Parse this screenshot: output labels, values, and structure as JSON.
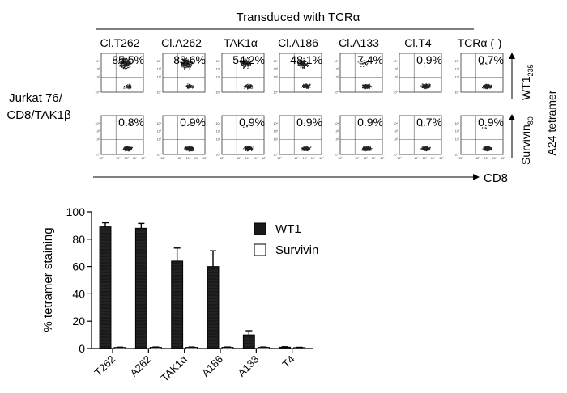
{
  "figure": {
    "top_header": "Transduced with TCRα",
    "clones": [
      "Cl.T262",
      "Cl.A262",
      "TAK1α",
      "Cl.A186",
      "Cl.A133",
      "Cl.T4",
      "TCRα (-)"
    ],
    "row_label_line1": "Jurkat 76/",
    "row_label_line2": "CD8/TAK1β",
    "x_axis_label": "CD8",
    "y_axis_group_label": "A24 tetramer",
    "row_labels": [
      {
        "base": "WT1",
        "sub": "235"
      },
      {
        "base": "Survivin",
        "sub": "80"
      }
    ],
    "facs_tick_labels": [
      "10⁰",
      "10¹",
      "10²",
      "10³",
      "10⁴",
      "10⁵"
    ],
    "percent_row1": [
      "85.5%",
      "83.6%",
      "54.2%",
      "48.1%",
      "7.4%",
      "0.9%",
      "0.7%"
    ],
    "percent_row2": [
      "0.8%",
      "0.9%",
      "0.9%",
      "0.9%",
      "0.9%",
      "0.7%",
      "0.9%"
    ]
  },
  "chart_data": {
    "type": "bar",
    "categories": [
      "T262",
      "A262",
      "TAK1α",
      "A186",
      "A133",
      "T4"
    ],
    "series": [
      {
        "name": "WT1",
        "values": [
          89,
          88,
          64,
          60,
          10,
          1
        ],
        "errors": [
          3,
          3.5,
          9.5,
          11.5,
          3,
          0.3
        ],
        "color": "#1a1a1a"
      },
      {
        "name": "Survivin",
        "values": [
          0.8,
          0.9,
          0.9,
          0.9,
          0.9,
          0.7
        ],
        "errors": [
          0.2,
          0.2,
          0.2,
          0.2,
          0.2,
          0.2
        ],
        "color": "#ffffff"
      }
    ],
    "ylabel": "% tetramer staining",
    "xlabel": "",
    "ylim": [
      0,
      100
    ],
    "yticks": [
      0,
      20,
      40,
      60,
      80,
      100
    ],
    "legend_position": "top-right"
  }
}
